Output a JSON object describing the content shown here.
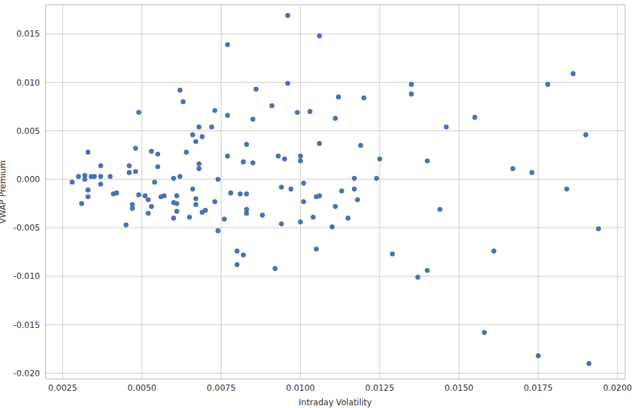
{
  "chart_data": {
    "type": "scatter",
    "xlabel": "Intraday Volatility",
    "ylabel": "VWAP Premium",
    "color": "#4c72b0",
    "marker": "circle",
    "grid": true,
    "xlim": [
      0.00196,
      0.02024
    ],
    "ylim": [
      -0.0206,
      0.018
    ],
    "xticks": [
      {
        "value": 0.0025,
        "label": "0.0025"
      },
      {
        "value": 0.005,
        "label": "0.0050"
      },
      {
        "value": 0.0075,
        "label": "0.0075"
      },
      {
        "value": 0.01,
        "label": "0.0100"
      },
      {
        "value": 0.0125,
        "label": "0.0125"
      },
      {
        "value": 0.015,
        "label": "0.0150"
      },
      {
        "value": 0.0175,
        "label": "0.0175"
      },
      {
        "value": 0.02,
        "label": "0.0200"
      }
    ],
    "yticks": [
      {
        "value": -0.02,
        "label": "-0.020"
      },
      {
        "value": -0.015,
        "label": "-0.015"
      },
      {
        "value": -0.01,
        "label": "-0.010"
      },
      {
        "value": -0.005,
        "label": "-0.005"
      },
      {
        "value": 0,
        "label": "0.000"
      },
      {
        "value": 0.005,
        "label": "0.005"
      },
      {
        "value": 0.01,
        "label": "0.010"
      },
      {
        "value": 0.015,
        "label": "0.015"
      }
    ],
    "x": [
      0.0028,
      0.003,
      0.0031,
      0.0032,
      0.0032,
      0.0033,
      0.0033,
      0.0033,
      0.0034,
      0.0035,
      0.0037,
      0.0037,
      0.0037,
      0.004,
      0.0041,
      0.0042,
      0.0045,
      0.0046,
      0.0046,
      0.0047,
      0.0047,
      0.0048,
      0.0048,
      0.0049,
      0.0049,
      0.0051,
      0.0052,
      0.0052,
      0.0053,
      0.0053,
      0.0054,
      0.0055,
      0.0055,
      0.0056,
      0.0057,
      0.006,
      0.006,
      0.006,
      0.0061,
      0.0061,
      0.0061,
      0.0062,
      0.0062,
      0.0063,
      0.0064,
      0.0065,
      0.0066,
      0.0066,
      0.0067,
      0.0067,
      0.0067,
      0.0068,
      0.0068,
      0.0068,
      0.0069,
      0.0069,
      0.007,
      0.0072,
      0.0073,
      0.0073,
      0.0074,
      0.0074,
      0.0076,
      0.0077,
      0.0077,
      0.0077,
      0.0078,
      0.008,
      0.008,
      0.0081,
      0.0082,
      0.0083,
      0.0083,
      0.0083,
      0.0083,
      0.0082,
      0.0085,
      0.0085,
      0.0086,
      0.0088,
      0.0091,
      0.0092,
      0.0093,
      0.0094,
      0.0094,
      0.0095,
      0.0096,
      0.0096,
      0.0097,
      0.0099,
      0.01,
      0.01,
      0.01,
      0.0101,
      0.0101,
      0.0103,
      0.0104,
      0.0105,
      0.0105,
      0.0106,
      0.0106,
      0.0106,
      0.011,
      0.0111,
      0.0111,
      0.0112,
      0.0113,
      0.0115,
      0.0117,
      0.0117,
      0.0118,
      0.0119,
      0.012,
      0.0124,
      0.0125,
      0.0129,
      0.0135,
      0.0135,
      0.0137,
      0.014,
      0.014,
      0.0144,
      0.0146,
      0.0155,
      0.0158,
      0.0161,
      0.0167,
      0.0173,
      0.0175,
      0.0178,
      0.0184,
      0.0186,
      0.019,
      0.0191,
      0.0194
    ],
    "values": [
      -0.0003,
      0.0003,
      -0.0025,
      0.0,
      0.0004,
      -0.0011,
      -0.0018,
      0.0028,
      0.0003,
      0.0003,
      -0.0005,
      0.0003,
      0.0014,
      0.0003,
      -0.0015,
      -0.0014,
      -0.0047,
      0.0007,
      0.0014,
      -0.0026,
      -0.003,
      0.0032,
      0.0008,
      0.0069,
      -0.0016,
      -0.0017,
      -0.0021,
      -0.0035,
      0.0029,
      -0.0028,
      -0.0003,
      0.0026,
      0.0013,
      -0.0018,
      -0.0017,
      -0.0024,
      -0.004,
      0.0001,
      -0.0033,
      -0.0017,
      -0.0025,
      0.0092,
      0.0003,
      0.008,
      0.0028,
      -0.0039,
      0.0046,
      -0.001,
      -0.0026,
      -0.002,
      0.0039,
      0.0011,
      0.0016,
      0.0054,
      0.0044,
      -0.0034,
      -0.0032,
      0.0054,
      0.0071,
      -0.0023,
      0.0,
      -0.0053,
      -0.0041,
      0.0139,
      0.0066,
      0.0024,
      -0.0014,
      -0.0088,
      -0.0074,
      -0.0015,
      0.0018,
      0.0036,
      -0.0015,
      -0.0031,
      -0.0035,
      -0.0078,
      0.0017,
      0.0062,
      0.0093,
      -0.0037,
      0.0076,
      -0.0092,
      0.0024,
      -0.0046,
      -0.0008,
      0.0021,
      0.0169,
      0.0099,
      -0.001,
      0.0069,
      0.0024,
      -0.0044,
      0.0019,
      -0.0004,
      -0.0023,
      0.007,
      -0.0039,
      -0.0072,
      -0.0018,
      0.0148,
      0.0037,
      -0.0017,
      -0.0049,
      0.0063,
      -0.0028,
      0.0085,
      -0.0012,
      -0.004,
      -0.001,
      0.0001,
      -0.0021,
      0.0035,
      0.0084,
      0.0001,
      0.0021,
      -0.0077,
      0.0098,
      0.0088,
      -0.0101,
      0.0019,
      -0.0094,
      -0.0031,
      0.0054,
      0.0064,
      -0.0158,
      -0.0074,
      0.0011,
      0.0007,
      -0.0182,
      0.0098,
      -0.001,
      0.0109,
      0.0046,
      -0.019,
      -0.0051
    ]
  }
}
